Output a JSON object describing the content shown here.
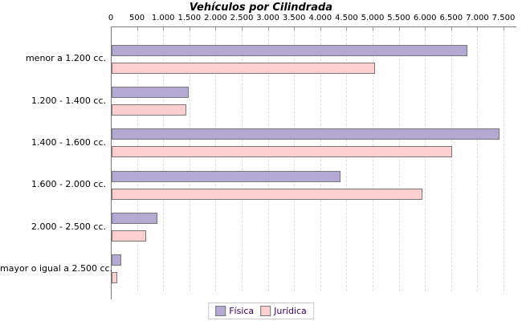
{
  "title": "Vehículos por Cilindrada",
  "colors": {
    "fisica_fill": "#b3a9d3",
    "juridica_fill": "#fbcfd0",
    "bar_border": "#787878",
    "axis_line": "#7b7b7b",
    "gridline": "#dedede",
    "legend_text": "#330066",
    "legend_border": "#c9c9c9",
    "background": "#ffffff",
    "text": "#000000"
  },
  "chart_data": {
    "type": "bar",
    "orientation": "horizontal",
    "title": "Vehículos por Cilindrada",
    "categories": [
      "menor a 1.200 cc.",
      "1.200 - 1.400 cc.",
      "1.400 - 1.600 cc.",
      "1.600 - 2.000 cc.",
      "2.000 - 2.500 cc.",
      "mayor o igual a 2.500 cc."
    ],
    "series": [
      {
        "name": "Física",
        "color": "#b3a9d3",
        "values": [
          6770,
          1440,
          7370,
          4340,
          840,
          160
        ]
      },
      {
        "name": "Jurídica",
        "color": "#fbcfd0",
        "values": [
          5000,
          1400,
          6470,
          5900,
          630,
          80
        ]
      }
    ],
    "xlim": [
      0,
      7500
    ],
    "x_tick_interval": 500,
    "x_tick_labels": [
      "0",
      "500",
      "1.000",
      "1.500",
      "2.000",
      "2.500",
      "3.000",
      "3.500",
      "4.000",
      "4.500",
      "5.000",
      "5.500",
      "6.000",
      "6.500",
      "7.000",
      "7.500"
    ],
    "x_axis_position": "top",
    "grid": "vertical-dashed",
    "legend_position": "bottom"
  },
  "legend": {
    "items": [
      {
        "label": "Física",
        "color": "#b3a9d3"
      },
      {
        "label": "Jurídica",
        "color": "#fbcfd0"
      }
    ]
  }
}
